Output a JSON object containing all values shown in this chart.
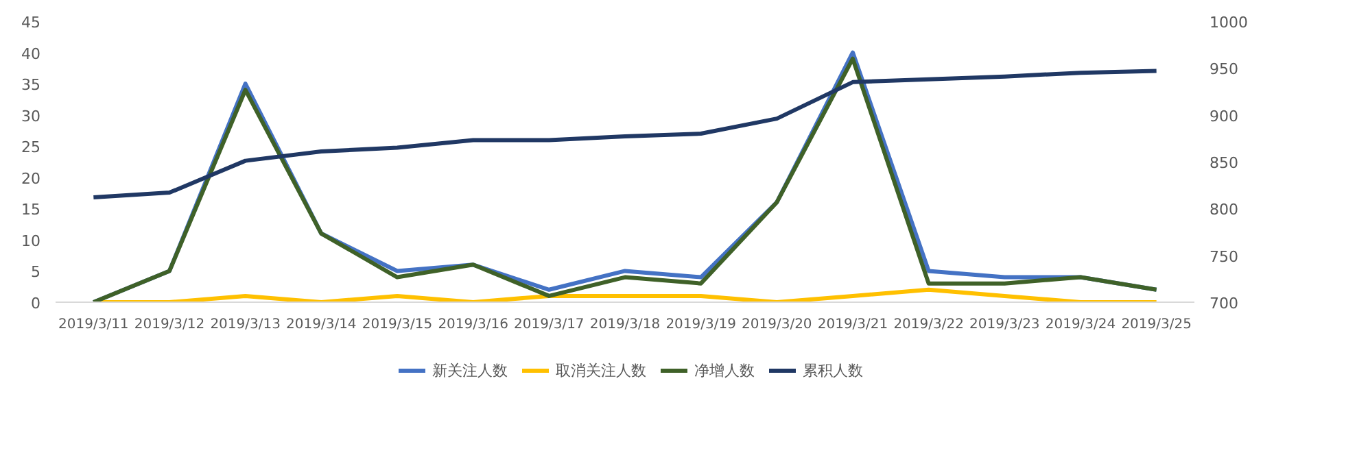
{
  "chart_data": {
    "type": "line",
    "categories": [
      "2019/3/11",
      "2019/3/12",
      "2019/3/13",
      "2019/3/14",
      "2019/3/15",
      "2019/3/16",
      "2019/3/17",
      "2019/3/18",
      "2019/3/19",
      "2019/3/20",
      "2019/3/21",
      "2019/3/22",
      "2019/3/23",
      "2019/3/24",
      "2019/3/25"
    ],
    "series": [
      {
        "name": "新关注人数",
        "color": "#4472c4",
        "values": [
          0,
          5,
          35,
          11,
          5,
          6,
          2,
          5,
          4,
          16,
          40,
          5,
          4,
          4,
          2
        ]
      },
      {
        "name": "取消关注人数",
        "color": "#ffc000",
        "values": [
          0,
          0,
          1,
          0,
          1,
          0,
          1,
          1,
          1,
          0,
          1,
          2,
          1,
          0,
          0
        ]
      },
      {
        "name": "净增人数",
        "color": "#3f6128",
        "values": [
          0,
          5,
          34,
          11,
          4,
          6,
          1,
          4,
          3,
          16,
          39,
          3,
          3,
          4,
          2
        ]
      },
      {
        "name": "累积人数",
        "color": "#203864",
        "axis": "y2",
        "values": [
          812,
          817,
          851,
          861,
          865,
          873,
          873,
          877,
          880,
          896,
          935,
          938,
          941,
          945,
          947
        ]
      }
    ],
    "ylim": [
      0,
      45
    ],
    "yticks": [
      0,
      5,
      10,
      15,
      20,
      25,
      30,
      35,
      40,
      45
    ],
    "y2lim": [
      700,
      1000
    ],
    "y2ticks": [
      700,
      750,
      800,
      850,
      900,
      950,
      1000
    ],
    "grid": false,
    "legend": "bottom",
    "marker": "none",
    "line_style": "solid"
  }
}
